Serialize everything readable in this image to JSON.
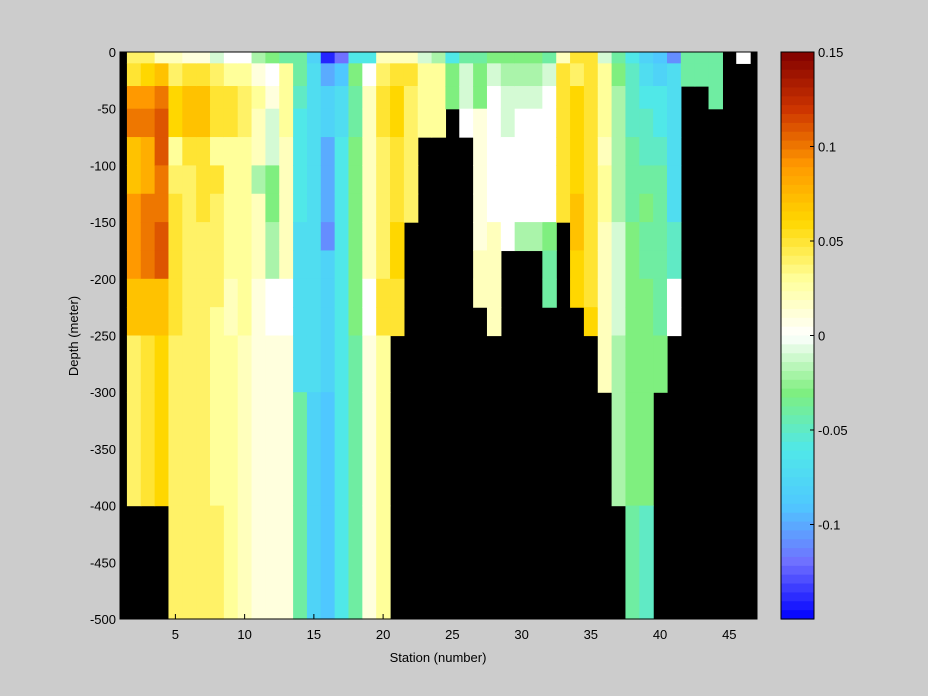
{
  "chart_data": {
    "type": "heatmap",
    "xlabel": "Station (number)",
    "ylabel": "Depth (meter)",
    "xlim": [
      1,
      47
    ],
    "ylim": [
      -500,
      0
    ],
    "xticks": [
      5,
      10,
      15,
      20,
      25,
      30,
      35,
      40,
      45
    ],
    "yticks": [
      0,
      -50,
      -100,
      -150,
      -200,
      -250,
      -300,
      -350,
      -400,
      -450,
      -500
    ],
    "no_data_color": "#000000",
    "background_color": "#cccccc",
    "colorbar": {
      "range": [
        -0.15,
        0.15
      ],
      "ticks": [
        0.15,
        0.1,
        0.05,
        0,
        -0.05,
        -0.1
      ],
      "tick_labels": [
        "0.15",
        "0.1",
        "0.05",
        "0",
        "-0.05",
        "-0.1"
      ],
      "colormap": [
        "#0000ff",
        "#7070ff",
        "#4fc8ff",
        "#50e8e8",
        "#7fef7f",
        "#ffffff",
        "#ffff9a",
        "#ffd700",
        "#ff9900",
        "#cc3300",
        "#800000"
      ]
    },
    "depth_bin_bounds": [
      0,
      -10,
      -30,
      -50,
      -75,
      -100,
      -125,
      -150,
      -175,
      -200,
      -225,
      -250,
      -300,
      -400,
      -500
    ],
    "columns": [
      {
        "station": 2,
        "values": [
          0.04,
          0.05,
          0.09,
          0.1,
          0.07,
          0.07,
          0.09,
          0.09,
          0.09,
          0.07,
          0.07,
          0.04,
          0.04
        ]
      },
      {
        "station": 3,
        "values": [
          0.04,
          0.06,
          0.09,
          0.1,
          0.08,
          0.08,
          0.1,
          0.1,
          0.1,
          0.07,
          0.07,
          0.05,
          0.05
        ]
      },
      {
        "station": 4,
        "values": [
          0.02,
          0.07,
          0.1,
          0.11,
          0.11,
          0.1,
          0.1,
          0.11,
          0.11,
          0.07,
          0.07,
          0.06,
          0.06
        ]
      },
      {
        "station": 5,
        "values": [
          0.02,
          0.04,
          0.06,
          0.06,
          0.03,
          0.04,
          0.05,
          0.05,
          0.05,
          0.05,
          0.05,
          0.04,
          0.04,
          0.04
        ]
      },
      {
        "station": 6,
        "values": [
          0.01,
          0.05,
          0.07,
          0.07,
          0.05,
          0.04,
          0.04,
          0.04,
          0.04,
          0.04,
          0.04,
          0.04,
          0.04,
          0.04
        ]
      },
      {
        "station": 7,
        "values": [
          0.01,
          0.05,
          0.07,
          0.07,
          0.05,
          0.05,
          0.05,
          0.04,
          0.04,
          0.04,
          0.04,
          0.04,
          0.04,
          0.04
        ]
      },
      {
        "station": 8,
        "values": [
          -0.01,
          0.04,
          0.05,
          0.05,
          0.03,
          0.05,
          0.04,
          0.04,
          0.04,
          0.04,
          0.03,
          0.03,
          0.03,
          0.04
        ]
      },
      {
        "station": 9,
        "values": [
          0.0,
          0.03,
          0.05,
          0.05,
          0.03,
          0.03,
          0.03,
          0.03,
          0.03,
          0.02,
          0.02,
          0.03,
          0.03,
          0.03
        ]
      },
      {
        "station": 10,
        "values": [
          0.0,
          0.03,
          0.04,
          0.04,
          0.03,
          0.03,
          0.03,
          0.03,
          0.03,
          0.03,
          0.03,
          0.02,
          0.02,
          0.02
        ]
      },
      {
        "station": 11,
        "values": [
          -0.02,
          0.01,
          0.03,
          0.02,
          0.02,
          -0.02,
          0.02,
          0.02,
          0.02,
          0.01,
          0.01,
          0.01,
          0.01,
          0.01
        ]
      },
      {
        "station": 12,
        "values": [
          -0.03,
          0.0,
          0.01,
          -0.01,
          -0.01,
          -0.03,
          -0.03,
          -0.02,
          -0.02,
          0.0,
          0.0,
          0.01,
          0.01,
          0.01
        ]
      },
      {
        "station": 13,
        "values": [
          -0.04,
          0.03,
          0.03,
          0.03,
          0.02,
          0.02,
          0.02,
          0.02,
          0.02,
          0.0,
          0.0,
          0.01,
          0.01,
          0.01,
          -0.08
        ]
      },
      {
        "station": 14,
        "values": [
          -0.04,
          -0.04,
          -0.05,
          -0.06,
          -0.06,
          -0.06,
          -0.06,
          -0.07,
          -0.07,
          -0.07,
          -0.07,
          -0.07,
          -0.04,
          -0.04,
          -0.08
        ]
      },
      {
        "station": 15,
        "values": [
          -0.08,
          -0.07,
          -0.07,
          -0.07,
          -0.07,
          -0.07,
          -0.07,
          -0.07,
          -0.07,
          -0.07,
          -0.07,
          -0.07,
          -0.08,
          -0.08,
          -0.08
        ]
      },
      {
        "station": 16,
        "values": [
          -0.14,
          -0.1,
          -0.08,
          -0.08,
          -0.1,
          -0.1,
          -0.1,
          -0.11,
          -0.08,
          -0.08,
          -0.08,
          -0.08,
          -0.09,
          -0.09,
          -0.11
        ]
      },
      {
        "station": 17,
        "values": [
          -0.12,
          -0.09,
          -0.07,
          -0.07,
          -0.06,
          -0.06,
          -0.06,
          -0.06,
          -0.06,
          -0.06,
          -0.06,
          -0.06,
          -0.06,
          -0.06,
          -0.11
        ]
      },
      {
        "station": 18,
        "values": [
          -0.06,
          -0.03,
          -0.04,
          -0.04,
          -0.03,
          -0.03,
          -0.03,
          -0.03,
          -0.03,
          -0.03,
          -0.03,
          -0.04,
          -0.04,
          -0.04,
          -0.04
        ]
      },
      {
        "station": 19,
        "values": [
          -0.06,
          0.0,
          0.02,
          0.02,
          0.02,
          0.02,
          0.02,
          0.02,
          0.02,
          0.0,
          0.0,
          0.01,
          0.01,
          0.01
        ]
      },
      {
        "station": 20,
        "values": [
          0.02,
          0.04,
          0.05,
          0.05,
          0.04,
          0.04,
          0.04,
          0.04,
          0.04,
          0.05,
          0.05,
          0.03,
          0.03,
          0.03
        ]
      },
      {
        "station": 21,
        "values": [
          0.02,
          0.05,
          0.06,
          0.06,
          0.05,
          0.05,
          0.05,
          0.06,
          0.06,
          0.05,
          0.05
        ]
      },
      {
        "station": 22,
        "values": [
          0.02,
          0.05,
          0.04,
          0.04,
          0.04,
          0.04,
          0.04
        ]
      },
      {
        "station": 23,
        "values": [
          -0.01,
          0.03,
          0.03,
          0.03
        ]
      },
      {
        "station": 24,
        "values": [
          -0.02,
          0.03,
          0.03,
          0.03
        ]
      },
      {
        "station": 25,
        "values": [
          -0.06,
          -0.03,
          -0.03
        ]
      },
      {
        "station": 26,
        "values": [
          -0.04,
          -0.01,
          -0.01,
          0.0
        ]
      },
      {
        "station": 27,
        "values": [
          -0.04,
          -0.03,
          -0.03,
          0.01,
          0.01,
          0.01,
          0.01,
          0.01,
          0.02,
          0.02
        ]
      },
      {
        "station": 28,
        "values": [
          -0.03,
          -0.01,
          0.0,
          0.0,
          0.0,
          0.0,
          0.0,
          0.02,
          0.02,
          0.02,
          0.02
        ]
      },
      {
        "station": 29,
        "values": [
          -0.03,
          -0.02,
          -0.01,
          -0.01,
          0.0,
          0.0,
          0.0,
          0.0
        ]
      },
      {
        "station": 30,
        "values": [
          -0.03,
          -0.02,
          -0.01,
          0.0,
          0.0,
          0.0,
          0.0,
          -0.02
        ]
      },
      {
        "station": 31,
        "values": [
          -0.03,
          -0.02,
          -0.01,
          0.0,
          0.0,
          0.0,
          0.0,
          -0.02
        ]
      },
      {
        "station": 32,
        "values": [
          -0.04,
          -0.01,
          0.0,
          0.0,
          0.0,
          0.0,
          0.0,
          -0.03,
          -0.04,
          -0.04
        ]
      },
      {
        "station": 33,
        "values": [
          0.02,
          0.05,
          0.05,
          0.05,
          0.05,
          0.05,
          0.05
        ]
      },
      {
        "station": 34,
        "values": [
          0.05,
          0.04,
          0.06,
          0.06,
          0.06,
          0.06,
          0.07,
          0.07,
          0.06,
          0.06
        ]
      },
      {
        "station": 35,
        "values": [
          0.05,
          0.05,
          0.05,
          0.05,
          0.05,
          0.05,
          0.05,
          0.05,
          0.05,
          0.05,
          0.06
        ]
      },
      {
        "station": 36,
        "values": [
          -0.01,
          0.03,
          0.03,
          0.03,
          0.02,
          0.03,
          0.03,
          0.02,
          0.02,
          0.02,
          0.02,
          0.02
        ]
      },
      {
        "station": 37,
        "values": [
          -0.04,
          -0.03,
          -0.02,
          -0.02,
          -0.02,
          -0.02,
          -0.02,
          -0.01,
          -0.01,
          -0.01,
          -0.01,
          -0.02,
          -0.02
        ]
      },
      {
        "station": 38,
        "values": [
          -0.06,
          -0.05,
          -0.05,
          -0.05,
          -0.04,
          -0.04,
          -0.04,
          -0.03,
          -0.03,
          -0.03,
          -0.03,
          -0.03,
          -0.03,
          -0.04
        ]
      },
      {
        "station": 39,
        "values": [
          -0.08,
          -0.07,
          -0.06,
          -0.05,
          -0.05,
          -0.04,
          -0.03,
          -0.04,
          -0.04,
          -0.03,
          -0.03,
          -0.03,
          -0.03,
          -0.05
        ]
      },
      {
        "station": 40,
        "values": [
          -0.09,
          -0.08,
          -0.06,
          -0.06,
          -0.05,
          -0.04,
          -0.04,
          -0.04,
          -0.04,
          -0.04,
          -0.04,
          -0.03
        ]
      },
      {
        "station": 41,
        "values": [
          -0.11,
          -0.07,
          -0.07,
          -0.07,
          -0.07,
          -0.07,
          -0.07,
          -0.05,
          -0.05,
          0.0,
          0.0
        ]
      },
      {
        "station": 42,
        "values": [
          -0.04,
          -0.04
        ]
      },
      {
        "station": 43,
        "values": [
          -0.04,
          -0.04
        ]
      },
      {
        "station": 44,
        "values": [
          -0.04,
          -0.04,
          -0.04
        ]
      },
      {
        "station": 46,
        "values": [
          0.0
        ]
      }
    ]
  }
}
